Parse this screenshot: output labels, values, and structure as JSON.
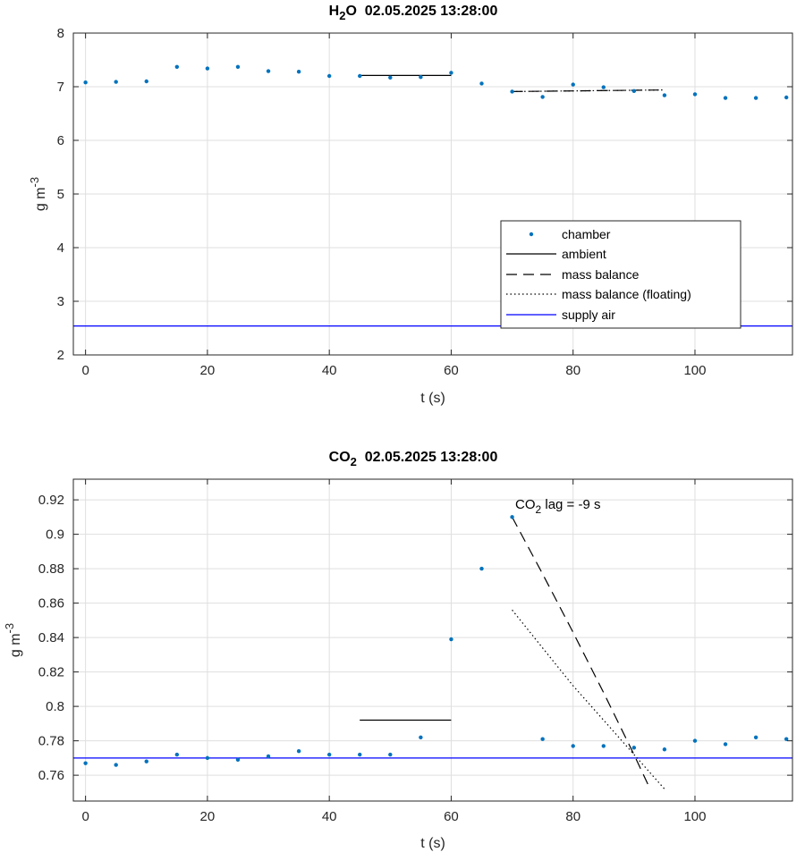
{
  "chart_data": [
    {
      "type": "scatter",
      "title_parts": [
        "H",
        "2",
        "O  02.05.2025 13:28:00"
      ],
      "xlabel": "t (s)",
      "ylabel_parts": [
        "g m",
        "-3"
      ],
      "xlim": [
        -2,
        116
      ],
      "ylim": [
        2,
        8
      ],
      "xticks": [
        0,
        20,
        40,
        60,
        80,
        100
      ],
      "yticks": [
        2,
        3,
        4,
        5,
        6,
        7,
        8
      ],
      "grid": true,
      "colors": {
        "chamber": "#0072BD",
        "supply": "#0000FF",
        "lines": "#000000"
      },
      "chamber": {
        "x": [
          0,
          5,
          10,
          15,
          20,
          25,
          30,
          35,
          40,
          45,
          50,
          55,
          60,
          65,
          70,
          75,
          80,
          85,
          90,
          95,
          100,
          105,
          110,
          115
        ],
        "y": [
          7.08,
          7.09,
          7.1,
          7.37,
          7.34,
          7.37,
          7.29,
          7.28,
          7.2,
          7.2,
          7.17,
          7.18,
          7.26,
          7.06,
          6.91,
          6.81,
          7.04,
          6.99,
          6.92,
          6.84,
          6.86,
          6.79,
          6.79,
          6.8
        ]
      },
      "ambient": {
        "x": [
          45,
          60
        ],
        "y": [
          7.21,
          7.21
        ]
      },
      "mass_balance": {
        "x": [
          70,
          95
        ],
        "y": [
          6.91,
          6.94
        ]
      },
      "mass_balance_floating": {
        "x": [
          70,
          95
        ],
        "y": [
          6.91,
          6.94
        ]
      },
      "supply_air": {
        "x": [
          -2,
          116
        ],
        "y": [
          2.54,
          2.54
        ]
      },
      "legend": {
        "location": "lower-right",
        "entries": [
          "chamber",
          "ambient",
          "mass balance",
          "mass balance (floating)",
          "supply air"
        ]
      }
    },
    {
      "type": "scatter",
      "title_parts": [
        "CO",
        "2",
        "  02.05.2025 13:28:00"
      ],
      "xlabel": "t (s)",
      "ylabel_parts": [
        "g m",
        "-3"
      ],
      "xlim": [
        -2,
        116
      ],
      "ylim": [
        0.745,
        0.932
      ],
      "xticks": [
        0,
        20,
        40,
        60,
        80,
        100
      ],
      "yticks": [
        0.76,
        0.78,
        0.8,
        0.82,
        0.84,
        0.86,
        0.88,
        0.9,
        0.92
      ],
      "ytick_labels": [
        "0.76",
        "0.78",
        "0.8",
        "0.82",
        "0.84",
        "0.86",
        "0.88",
        "0.9",
        "0.92"
      ],
      "grid": true,
      "colors": {
        "chamber": "#0072BD",
        "supply": "#0000FF",
        "lines": "#000000"
      },
      "chamber": {
        "x": [
          0,
          5,
          10,
          15,
          20,
          25,
          30,
          35,
          40,
          45,
          50,
          55,
          60,
          65,
          70,
          75,
          80,
          85,
          90,
          95,
          100,
          105,
          110,
          115
        ],
        "y": [
          0.767,
          0.766,
          0.768,
          0.772,
          0.77,
          0.769,
          0.771,
          0.774,
          0.772,
          0.772,
          0.772,
          0.782,
          0.839,
          0.88,
          0.91,
          0.781,
          0.777,
          0.777,
          0.776,
          0.775,
          0.78,
          0.778,
          0.782,
          0.781
        ]
      },
      "ambient": {
        "x": [
          45,
          60
        ],
        "y": [
          0.792,
          0.792
        ]
      },
      "mass_balance": {
        "x": [
          70,
          75,
          80,
          85,
          90,
          92.5
        ],
        "y": [
          0.91,
          0.877,
          0.843,
          0.808,
          0.772,
          0.753
        ]
      },
      "mass_balance_floating": {
        "x": [
          70,
          75,
          80,
          85,
          90,
          95
        ],
        "y": [
          0.856,
          0.834,
          0.812,
          0.792,
          0.772,
          0.752
        ]
      },
      "supply_air": {
        "x": [
          -2,
          116
        ],
        "y": [
          0.77,
          0.77
        ]
      },
      "annotation": {
        "parts": [
          "CO",
          "2",
          " lag = -9 s"
        ],
        "x": 70,
        "y": 0.913
      }
    }
  ]
}
